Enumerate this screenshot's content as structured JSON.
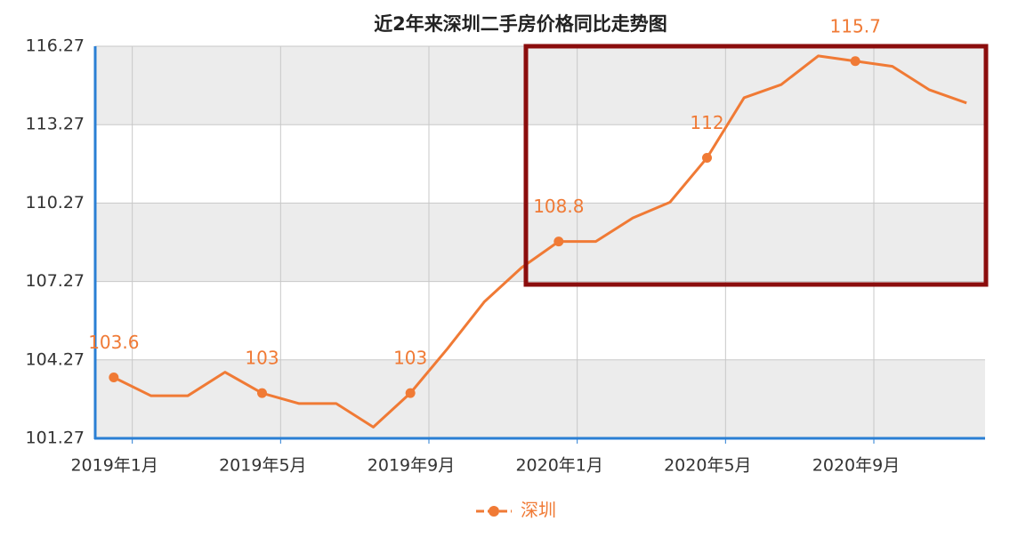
{
  "chart_data": {
    "type": "line",
    "title": "近2年来深圳二手房价格同比走势图",
    "categories": [
      null,
      "2019年1月",
      null,
      null,
      null,
      "2019年5月",
      null,
      null,
      null,
      "2019年9月",
      null,
      null,
      null,
      "2020年1月",
      null,
      null,
      null,
      "2020年5月",
      null,
      null,
      null,
      "2020年9月",
      null,
      null
    ],
    "series": [
      {
        "name": "深圳",
        "color": "#f07a35",
        "values": [
          103.6,
          102.9,
          102.9,
          103.8,
          103,
          102.6,
          102.6,
          101.7,
          103,
          104.7,
          106.5,
          107.8,
          108.8,
          108.8,
          109.7,
          110.3,
          112,
          114.3,
          114.8,
          115.9,
          115.7,
          115.5,
          114.6,
          114.1
        ]
      }
    ],
    "value_label_interval": 4,
    "ylim": [
      101.27,
      116.27
    ],
    "yticks": [
      101.27,
      104.27,
      107.27,
      110.27,
      113.27,
      116.27
    ],
    "grid": true,
    "legend": "bottom"
  }
}
